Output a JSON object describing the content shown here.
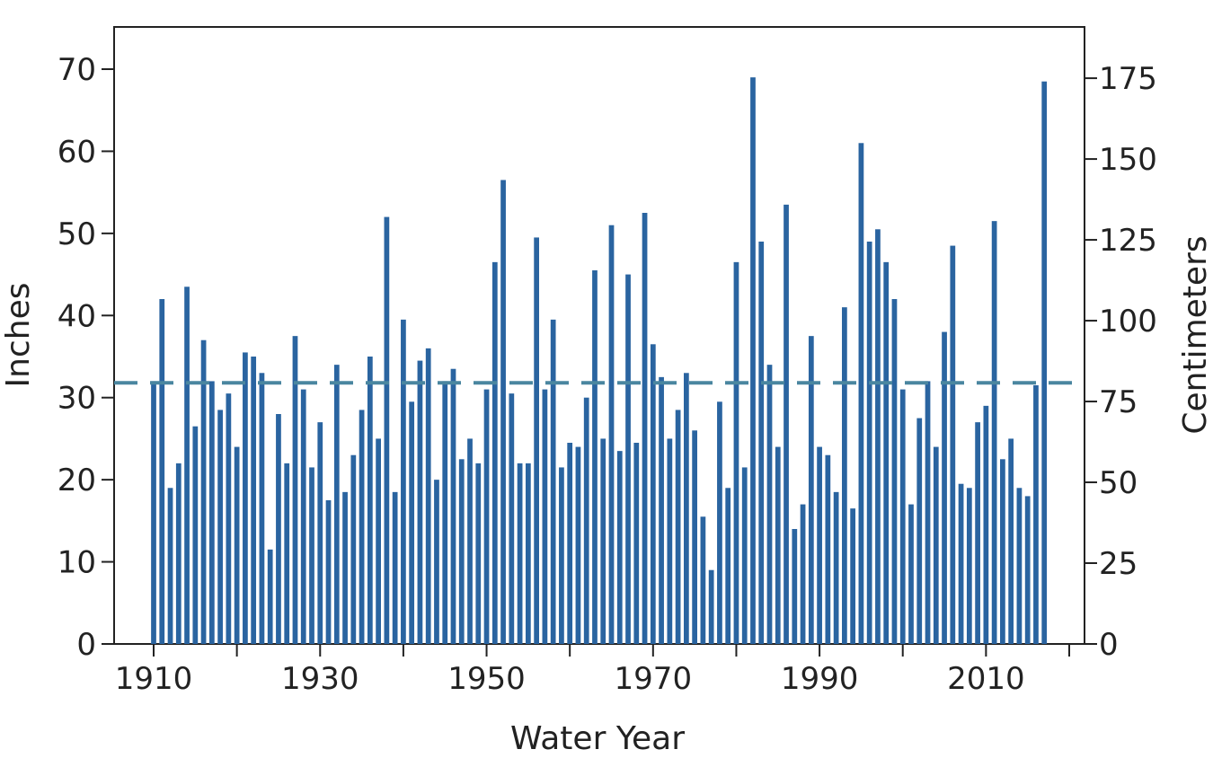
{
  "chart_data": {
    "type": "bar",
    "xlabel": "Water Year",
    "ylabel": "Inches",
    "y2label": "Centimeters",
    "xlim": [
      1905,
      2022
    ],
    "ylim": [
      0,
      75
    ],
    "y2lim": [
      0,
      190.5
    ],
    "x_ticks": [
      1910,
      1920,
      1930,
      1940,
      1950,
      1960,
      1970,
      1980,
      1990,
      2000,
      2010,
      2020
    ],
    "x_tick_labels": [
      "1910",
      "1930",
      "1950",
      "1970",
      "1990",
      "2010"
    ],
    "y_ticks": [
      0,
      10,
      20,
      30,
      40,
      50,
      60,
      70
    ],
    "y2_ticks": [
      0,
      25,
      50,
      75,
      100,
      125,
      150,
      175
    ],
    "mean_line": 31.8,
    "bar_color": "#2a64a0",
    "mean_line_color": "#4a86a0",
    "grid": false,
    "x": [
      1910,
      1911,
      1912,
      1913,
      1914,
      1915,
      1916,
      1917,
      1918,
      1919,
      1920,
      1921,
      1922,
      1923,
      1924,
      1925,
      1926,
      1927,
      1928,
      1929,
      1930,
      1931,
      1932,
      1933,
      1934,
      1935,
      1936,
      1937,
      1938,
      1939,
      1940,
      1941,
      1942,
      1943,
      1944,
      1945,
      1946,
      1947,
      1948,
      1949,
      1950,
      1951,
      1952,
      1953,
      1954,
      1955,
      1956,
      1957,
      1958,
      1959,
      1960,
      1961,
      1962,
      1963,
      1964,
      1965,
      1966,
      1967,
      1968,
      1969,
      1970,
      1971,
      1972,
      1973,
      1974,
      1975,
      1976,
      1977,
      1978,
      1979,
      1980,
      1981,
      1982,
      1983,
      1984,
      1985,
      1986,
      1987,
      1988,
      1989,
      1990,
      1991,
      1992,
      1993,
      1994,
      1995,
      1996,
      1997,
      1998,
      1999,
      2000,
      2001,
      2002,
      2003,
      2004,
      2005,
      2006,
      2007,
      2008,
      2009,
      2010,
      2011,
      2012,
      2013,
      2014,
      2015,
      2016,
      2017
    ],
    "values": [
      32.0,
      42.0,
      19.0,
      22.0,
      43.5,
      26.5,
      37.0,
      32.0,
      28.5,
      30.5,
      24.0,
      35.5,
      35.0,
      33.0,
      11.5,
      28.0,
      22.0,
      37.5,
      31.0,
      21.5,
      27.0,
      17.5,
      34.0,
      18.5,
      23.0,
      28.5,
      35.0,
      25.0,
      52.0,
      18.5,
      39.5,
      29.5,
      34.5,
      36.0,
      20.0,
      32.0,
      33.5,
      22.5,
      25.0,
      22.0,
      31.0,
      46.5,
      56.5,
      30.5,
      22.0,
      22.0,
      49.5,
      31.0,
      39.5,
      21.5,
      24.5,
      24.0,
      30.0,
      45.5,
      25.0,
      51.0,
      23.5,
      45.0,
      24.5,
      52.5,
      36.5,
      32.5,
      25.0,
      28.5,
      33.0,
      26.0,
      15.5,
      9.0,
      29.5,
      19.0,
      46.5,
      21.5,
      69.0,
      49.0,
      34.0,
      24.0,
      53.5,
      14.0,
      17.0,
      37.5,
      24.0,
      23.0,
      18.5,
      41.0,
      16.5,
      61.0,
      49.0,
      50.5,
      46.5,
      42.0,
      31.0,
      17.0,
      27.5,
      32.0,
      24.0,
      38.0,
      48.5,
      19.5,
      19.0,
      27.0,
      29.0,
      51.5,
      22.5,
      25.0,
      19.0,
      18.0,
      31.5,
      68.5
    ]
  }
}
